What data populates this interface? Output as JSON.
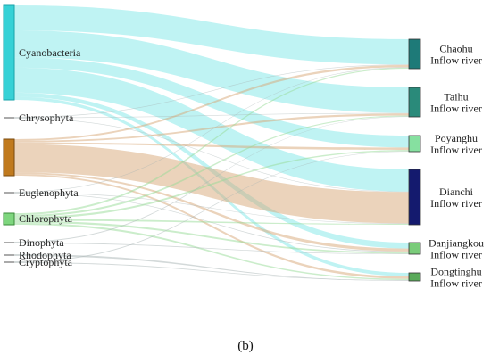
{
  "caption": "(b)",
  "sources": [
    {
      "id": "cyanobacteria",
      "label": "Cyanobacteria",
      "color": "#36d1d6",
      "stroke": "#1aa3aa"
    },
    {
      "id": "chrysophyta",
      "label": "Chrysophyta",
      "color": "#9aa4a4",
      "stroke": "#555555"
    },
    {
      "id": "bacillariophyta",
      "label": "",
      "color": "#c07a1e",
      "stroke": "#7a4a0e"
    },
    {
      "id": "euglenophyta",
      "label": "Euglenophyta",
      "color": "#9aa4a4",
      "stroke": "#555555"
    },
    {
      "id": "chlorophyta",
      "label": "Chlorophyta",
      "color": "#7ed67e",
      "stroke": "#3a8a3a"
    },
    {
      "id": "dinophyta",
      "label": "Dinophyta",
      "color": "#9aa4a4",
      "stroke": "#555555"
    },
    {
      "id": "cryptophyta",
      "label": "Cryptophyta",
      "color": "#9aa4a4",
      "stroke": "#555555"
    },
    {
      "id": "rhodophyta",
      "label": "Rhodophyta",
      "color": "#9aa4a4",
      "stroke": "#555555"
    }
  ],
  "targets": [
    {
      "id": "chaohu",
      "label1": "Chaohu",
      "label2": "Inflow river",
      "color": "#1e7a78"
    },
    {
      "id": "taihu",
      "label1": "Taihu",
      "label2": "Inflow river",
      "color": "#2a8a7a"
    },
    {
      "id": "poyanghu",
      "label1": "Poyanghu",
      "label2": "Inflow river",
      "color": "#86e0a0"
    },
    {
      "id": "dianchi",
      "label1": "Dianchi",
      "label2": "Inflow river",
      "color": "#141a6e"
    },
    {
      "id": "danjiangkou",
      "label1": "Danjiangkou",
      "label2": "Inflow river",
      "color": "#7acc7a"
    },
    {
      "id": "dongtinghu",
      "label1": "Dongtinghu",
      "label2": "Inflow river",
      "color": "#5aaa5a"
    }
  ],
  "links": [
    {
      "source": "cyanobacteria",
      "target": "chaohu",
      "value": 24,
      "color": "#5fe0e0",
      "opacity": 0.4
    },
    {
      "source": "cyanobacteria",
      "target": "taihu",
      "value": 26,
      "color": "#5fe0e0",
      "opacity": 0.4
    },
    {
      "source": "cyanobacteria",
      "target": "poyanghu",
      "value": 10,
      "color": "#5fe0e0",
      "opacity": 0.4
    },
    {
      "source": "cyanobacteria",
      "target": "dianchi",
      "value": 24,
      "color": "#5fe0e0",
      "opacity": 0.4
    },
    {
      "source": "cyanobacteria",
      "target": "danjiangkou",
      "value": 4,
      "color": "#5fe0e0",
      "opacity": 0.4
    },
    {
      "source": "cyanobacteria",
      "target": "dongtinghu",
      "value": 3,
      "color": "#5fe0e0",
      "opacity": 0.4
    },
    {
      "source": "chrysophyta",
      "target": "chaohu",
      "value": 0.5,
      "color": "#a8b4b4",
      "opacity": 0.5
    },
    {
      "source": "chrysophyta",
      "target": "taihu",
      "value": 0.5,
      "color": "#a8b4b4",
      "opacity": 0.5
    },
    {
      "source": "chrysophyta",
      "target": "dianchi",
      "value": 0.5,
      "color": "#a8b4b4",
      "opacity": 0.5
    },
    {
      "source": "bacillariophyta",
      "target": "chaohu",
      "value": 2,
      "color": "#d8a878",
      "opacity": 0.5
    },
    {
      "source": "bacillariophyta",
      "target": "taihu",
      "value": 2,
      "color": "#d8a878",
      "opacity": 0.5
    },
    {
      "source": "bacillariophyta",
      "target": "poyanghu",
      "value": 2,
      "color": "#d8a878",
      "opacity": 0.5
    },
    {
      "source": "bacillariophyta",
      "target": "dianchi",
      "value": 34,
      "color": "#d8a878",
      "opacity": 0.5
    },
    {
      "source": "bacillariophyta",
      "target": "danjiangkou",
      "value": 2,
      "color": "#d8a878",
      "opacity": 0.5
    },
    {
      "source": "bacillariophyta",
      "target": "dongtinghu",
      "value": 2,
      "color": "#d8a878",
      "opacity": 0.5
    },
    {
      "source": "euglenophyta",
      "target": "chaohu",
      "value": 0.5,
      "color": "#a8b4b4",
      "opacity": 0.5
    },
    {
      "source": "euglenophyta",
      "target": "dianchi",
      "value": 0.5,
      "color": "#a8b4b4",
      "opacity": 0.5
    },
    {
      "source": "euglenophyta",
      "target": "danjiangkou",
      "value": 0.5,
      "color": "#a8b4b4",
      "opacity": 0.5
    },
    {
      "source": "chlorophyta",
      "target": "chaohu",
      "value": 1,
      "color": "#98dc98",
      "opacity": 0.5
    },
    {
      "source": "chlorophyta",
      "target": "taihu",
      "value": 1,
      "color": "#98dc98",
      "opacity": 0.5
    },
    {
      "source": "chlorophyta",
      "target": "poyanghu",
      "value": 1,
      "color": "#98dc98",
      "opacity": 0.5
    },
    {
      "source": "chlorophyta",
      "target": "dianchi",
      "value": 1,
      "color": "#98dc98",
      "opacity": 0.5
    },
    {
      "source": "chlorophyta",
      "target": "danjiangkou",
      "value": 1,
      "color": "#98dc98",
      "opacity": 0.5
    },
    {
      "source": "chlorophyta",
      "target": "dongtinghu",
      "value": 1,
      "color": "#98dc98",
      "opacity": 0.5
    },
    {
      "source": "dinophyta",
      "target": "taihu",
      "value": 0.4,
      "color": "#a8b4b4",
      "opacity": 0.5
    },
    {
      "source": "dinophyta",
      "target": "danjiangkou",
      "value": 0.4,
      "color": "#a8b4b4",
      "opacity": 0.5
    },
    {
      "source": "cryptophyta",
      "target": "poyanghu",
      "value": 0.4,
      "color": "#a8b4b4",
      "opacity": 0.5
    },
    {
      "source": "cryptophyta",
      "target": "dongtinghu",
      "value": 0.4,
      "color": "#a8b4b4",
      "opacity": 0.5
    },
    {
      "source": "rhodophyta",
      "target": "dongtinghu",
      "value": 0.4,
      "color": "#a8b4b4",
      "opacity": 0.5
    }
  ]
}
